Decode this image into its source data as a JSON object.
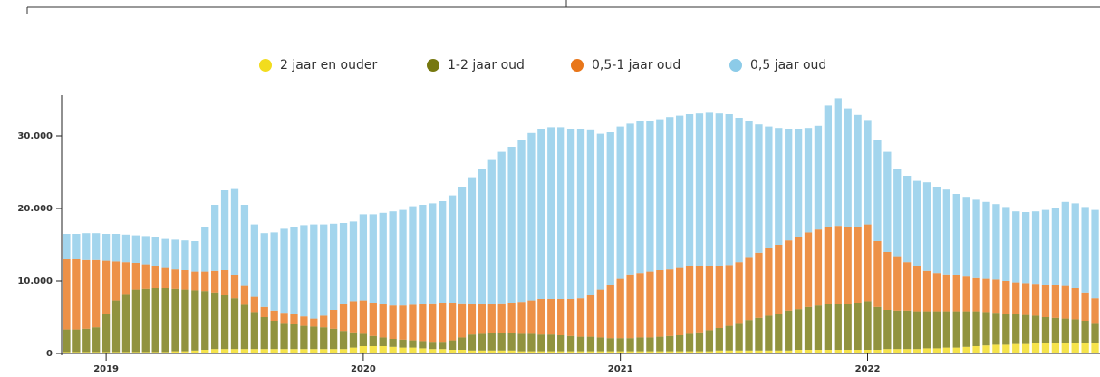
{
  "chart_data": {
    "type": "stacked_bar",
    "categories": [
      null,
      null,
      null,
      null,
      "2019",
      null,
      null,
      null,
      null,
      null,
      null,
      null,
      null,
      null,
      null,
      null,
      null,
      null,
      null,
      null,
      null,
      null,
      null,
      null,
      null,
      null,
      null,
      null,
      null,
      null,
      "2020",
      null,
      null,
      null,
      null,
      null,
      null,
      null,
      null,
      null,
      null,
      null,
      null,
      null,
      null,
      null,
      null,
      null,
      null,
      null,
      null,
      null,
      null,
      null,
      null,
      null,
      "2021",
      null,
      null,
      null,
      null,
      null,
      null,
      null,
      null,
      null,
      null,
      null,
      null,
      null,
      null,
      null,
      null,
      null,
      null,
      null,
      null,
      null,
      null,
      null,
      null,
      "2022",
      null,
      null,
      null,
      null,
      null,
      null,
      null,
      null,
      null,
      null,
      null,
      null,
      null,
      null,
      null,
      null,
      null,
      null,
      null,
      null,
      null,
      null,
      null
    ],
    "series": [
      {
        "name": "2 jaar en ouder",
        "color": "#f2dc1e",
        "values": [
          200,
          200,
          200,
          200,
          200,
          200,
          200,
          200,
          200,
          200,
          200,
          300,
          300,
          400,
          500,
          600,
          600,
          600,
          600,
          600,
          600,
          600,
          600,
          600,
          600,
          600,
          600,
          600,
          600,
          800,
          1000,
          1000,
          1000,
          900,
          800,
          800,
          700,
          600,
          600,
          500,
          500,
          400,
          400,
          400,
          400,
          400,
          300,
          300,
          300,
          300,
          300,
          300,
          300,
          300,
          300,
          300,
          300,
          300,
          300,
          300,
          300,
          300,
          300,
          300,
          300,
          300,
          400,
          400,
          400,
          400,
          400,
          400,
          400,
          400,
          500,
          500,
          500,
          500,
          500,
          500,
          500,
          500,
          500,
          600,
          600,
          600,
          600,
          700,
          700,
          800,
          800,
          900,
          1000,
          1100,
          1200,
          1200,
          1300,
          1300,
          1400,
          1400,
          1400,
          1500,
          1500,
          1500,
          1500
        ]
      },
      {
        "name": "1-2 jaar oud",
        "color": "#76780f",
        "values": [
          3100,
          3100,
          3200,
          3400,
          5300,
          7100,
          8000,
          8600,
          8700,
          8800,
          8800,
          8600,
          8500,
          8300,
          8100,
          7800,
          7500,
          7000,
          6100,
          5100,
          4400,
          3900,
          3600,
          3400,
          3200,
          3100,
          3000,
          2800,
          2500,
          2100,
          1700,
          1400,
          1200,
          1100,
          1100,
          1000,
          1000,
          1000,
          1000,
          1300,
          1700,
          2200,
          2300,
          2400,
          2400,
          2400,
          2400,
          2400,
          2300,
          2300,
          2200,
          2100,
          2000,
          2000,
          1900,
          1800,
          1800,
          1800,
          1900,
          1900,
          2000,
          2100,
          2200,
          2400,
          2600,
          2900,
          3100,
          3400,
          3800,
          4200,
          4500,
          4800,
          5100,
          5500,
          5600,
          5900,
          6100,
          6300,
          6300,
          6300,
          6500,
          6700,
          5900,
          5400,
          5300,
          5300,
          5200,
          5100,
          5100,
          5000,
          5000,
          4900,
          4800,
          4600,
          4400,
          4300,
          4100,
          4000,
          3800,
          3600,
          3500,
          3300,
          3200,
          3000,
          2700
        ]
      },
      {
        "name": "0,5-1 jaar oud",
        "color": "#e8761a",
        "values": [
          9700,
          9700,
          9500,
          9300,
          7300,
          5400,
          4400,
          3700,
          3400,
          3000,
          2800,
          2700,
          2700,
          2600,
          2700,
          3000,
          3400,
          3200,
          2600,
          2100,
          1400,
          1400,
          1400,
          1400,
          1300,
          1100,
          1600,
          2600,
          3700,
          4300,
          4600,
          4600,
          4600,
          4600,
          4700,
          4900,
          5100,
          5300,
          5400,
          5200,
          4700,
          4200,
          4100,
          4000,
          4100,
          4200,
          4400,
          4600,
          4900,
          4900,
          5000,
          5100,
          5300,
          5700,
          6600,
          7400,
          8200,
          8800,
          8900,
          9100,
          9200,
          9200,
          9300,
          9300,
          9100,
          8800,
          8600,
          8400,
          8400,
          8600,
          9000,
          9300,
          9500,
          9700,
          10000,
          10300,
          10500,
          10700,
          10800,
          10600,
          10500,
          10600,
          9100,
          8000,
          7400,
          6700,
          6200,
          5600,
          5300,
          5100,
          5000,
          4800,
          4600,
          4600,
          4600,
          4500,
          4400,
          4400,
          4400,
          4500,
          4600,
          4500,
          4300,
          3900,
          3400
        ]
      },
      {
        "name": "0,5 jaar oud",
        "color": "#8ccbe8",
        "values": [
          3500,
          3500,
          3700,
          3700,
          3700,
          3800,
          3800,
          3800,
          3900,
          4000,
          4000,
          4100,
          4100,
          4200,
          6200,
          9100,
          11000,
          12000,
          11200,
          10000,
          10200,
          10800,
          11600,
          12100,
          12600,
          13000,
          12600,
          11900,
          11200,
          11000,
          11900,
          12200,
          12600,
          13000,
          13200,
          13600,
          13700,
          13800,
          14000,
          14800,
          16100,
          17500,
          18700,
          20000,
          20900,
          21500,
          22400,
          23100,
          23500,
          23700,
          23700,
          23500,
          23400,
          22900,
          21500,
          21000,
          21000,
          20800,
          20900,
          20800,
          20800,
          21000,
          21000,
          21000,
          21100,
          21200,
          21000,
          20800,
          19900,
          18800,
          17700,
          16800,
          16100,
          15400,
          14900,
          14400,
          14300,
          16700,
          17600,
          16400,
          15400,
          14400,
          14000,
          13800,
          12200,
          11900,
          11800,
          12200,
          11900,
          11700,
          11200,
          11000,
          10800,
          10600,
          10400,
          10200,
          9800,
          9800,
          10000,
          10300,
          10600,
          11600,
          11700,
          11800,
          12200
        ]
      }
    ],
    "ylim": [
      0,
      36000
    ],
    "yticks": [
      0,
      {
        "value": 10000,
        "label": "10.000"
      },
      {
        "value": 20000,
        "label": "20.000"
      },
      {
        "value": 30000,
        "label": "30.000"
      }
    ],
    "legend": "top"
  }
}
